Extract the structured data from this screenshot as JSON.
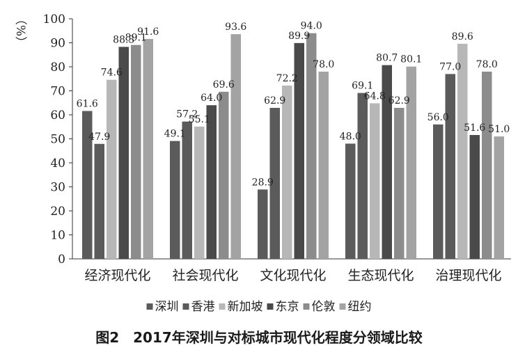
{
  "caption": "图2　2017年深圳与对标城市现代化程度分领域比较",
  "chart_data": {
    "type": "bar",
    "title": "图2　2017年深圳与对标城市现代化程度分领域比较",
    "ylabel": "（%）",
    "ylim": [
      0,
      100
    ],
    "yticks": [
      0,
      10,
      20,
      30,
      40,
      50,
      60,
      70,
      80,
      90,
      100
    ],
    "grid": false,
    "legend_position": "bottom",
    "categories": [
      "经济现代化",
      "社会现代化",
      "文化现代化",
      "生态现代化",
      "治理现代化"
    ],
    "series": [
      {
        "name": "深圳",
        "color": "#5b5b5b",
        "values": [
          61.6,
          49.1,
          28.9,
          48.0,
          56.0
        ]
      },
      {
        "name": "香港",
        "color": "#5b5b5b",
        "values": [
          47.9,
          57.2,
          62.9,
          69.1,
          77.0
        ]
      },
      {
        "name": "新加坡",
        "color": "#b7b7b7",
        "values": [
          74.6,
          55.1,
          72.2,
          64.8,
          89.6
        ]
      },
      {
        "name": "东京",
        "color": "#4a4a4a",
        "values": [
          88.3,
          64.0,
          89.9,
          80.7,
          51.6
        ]
      },
      {
        "name": "伦敦",
        "color": "#8c8c8c",
        "values": [
          89.1,
          69.6,
          94.0,
          62.9,
          78.0
        ]
      },
      {
        "name": "纽约",
        "color": "#a3a3a3",
        "values": [
          91.6,
          93.6,
          78.0,
          80.1,
          51.0
        ]
      }
    ]
  }
}
